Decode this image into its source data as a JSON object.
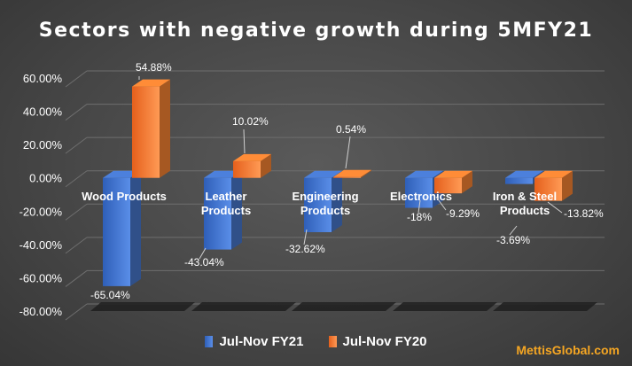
{
  "chart_data": {
    "type": "bar",
    "title": "Sectors with negative growth during 5MFY21",
    "categories": [
      "Wood Products",
      "Leather Products",
      "Engineering Products",
      "Electronics",
      "Iron & Steel Products"
    ],
    "series": [
      {
        "name": "Jul-Nov FY21",
        "values": [
          -65.04,
          -43.04,
          -32.62,
          -18,
          -3.69
        ],
        "labels": [
          "-65.04%",
          "-43.04%",
          "-32.62%",
          "-18%",
          "-3.69%"
        ],
        "color": "#4472C4"
      },
      {
        "name": "Jul-Nov FY20",
        "values": [
          54.88,
          10.02,
          0.54,
          -9.29,
          -13.82
        ],
        "labels": [
          "54.88%",
          "10.02%",
          "0.54%",
          "-9.29%",
          "-13.82%"
        ],
        "color": "#ED7D31"
      }
    ],
    "y_ticks": [
      "60.00%",
      "40.00%",
      "20.00%",
      "0.00%",
      "-20.00%",
      "-40.00%",
      "-60.00%",
      "-80.00%"
    ],
    "y_tick_values": [
      60,
      40,
      20,
      0,
      -20,
      -40,
      -60,
      -80
    ],
    "ylim": [
      -80,
      60
    ],
    "grid": true,
    "legend_position": "bottom",
    "background_color": "#474747"
  },
  "watermark": "MettisGlobal.com"
}
